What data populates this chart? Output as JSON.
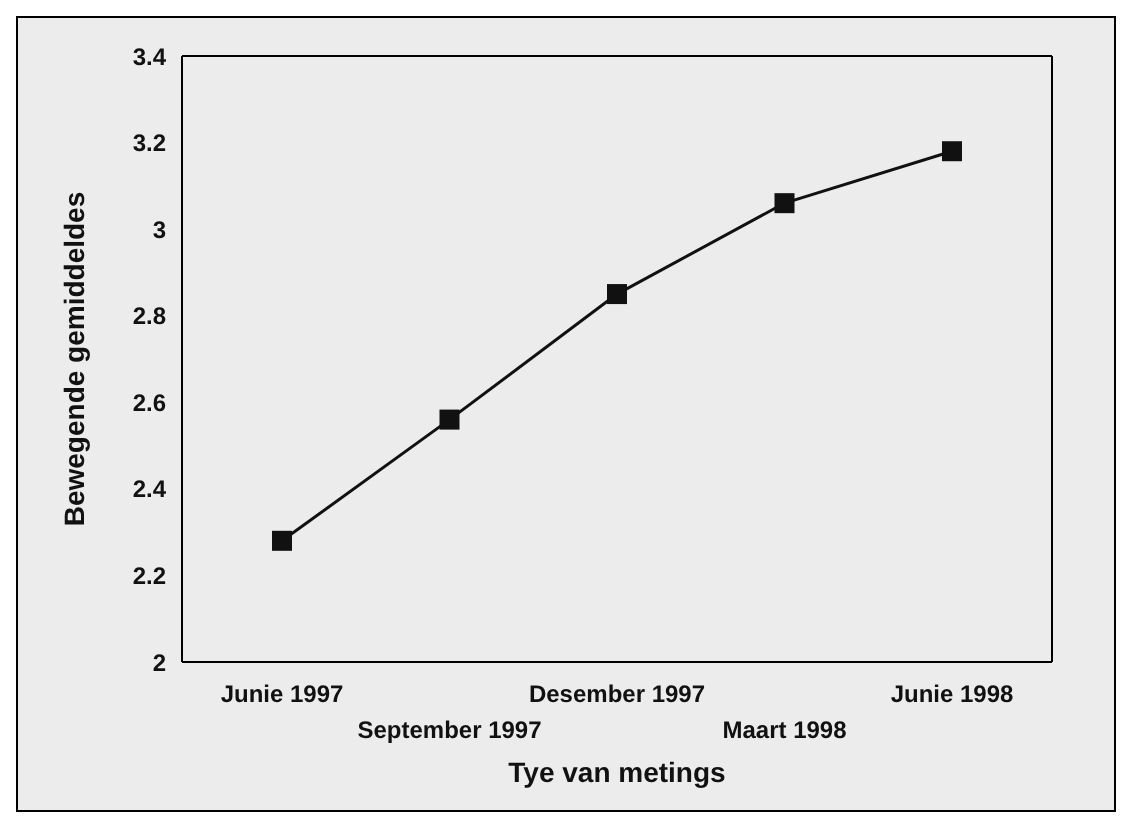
{
  "chart_data": {
    "type": "line",
    "xlabel": "Tye van metings",
    "ylabel": "Bewegende gemiddeldes",
    "categories": [
      "Junie 1997",
      "September 1997",
      "Desember 1997",
      "Maart 1998",
      "Junie 1998"
    ],
    "series": [
      {
        "color": "#111111",
        "values": [
          2.28,
          2.56,
          2.85,
          3.06,
          3.18
        ]
      }
    ],
    "ylim": [
      2,
      3.4
    ],
    "yticks": [
      2,
      2.2,
      2.4,
      2.6,
      2.8,
      3,
      3.2,
      3.4
    ],
    "grid": false,
    "legend": false,
    "marker": "square",
    "line_style": "solid"
  }
}
